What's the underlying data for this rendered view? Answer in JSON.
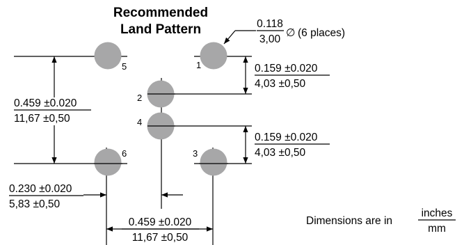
{
  "title": {
    "line1": "Recommended",
    "line2": "Land Pattern"
  },
  "hole_callout": {
    "inches": "0.118",
    "mm": "3,00",
    "symbol": "∅",
    "note": "(6 places)"
  },
  "pads": {
    "color": "#a7a7a8",
    "labels": [
      "1",
      "2",
      "3",
      "4",
      "5",
      "6"
    ]
  },
  "dimensions": {
    "v_pitch_1_2": {
      "inches": "0.159 ±0.020",
      "mm": "4,03 ±0,50"
    },
    "v_pitch_4_3": {
      "inches": "0.159 ±0.020",
      "mm": "4,03 ±0,50"
    },
    "left_height": {
      "inches": "0.459 ±0.020",
      "mm": "11,67 ±0,50"
    },
    "bottom_width": {
      "inches": "0.459 ±0.020",
      "mm": "11,67 ±0,50"
    },
    "offset": {
      "inches": "0.230 ±0.020",
      "mm": "5,83 ±0,50"
    }
  },
  "units_note": {
    "text": "Dimensions are in",
    "inches": "inches",
    "mm": "mm"
  }
}
